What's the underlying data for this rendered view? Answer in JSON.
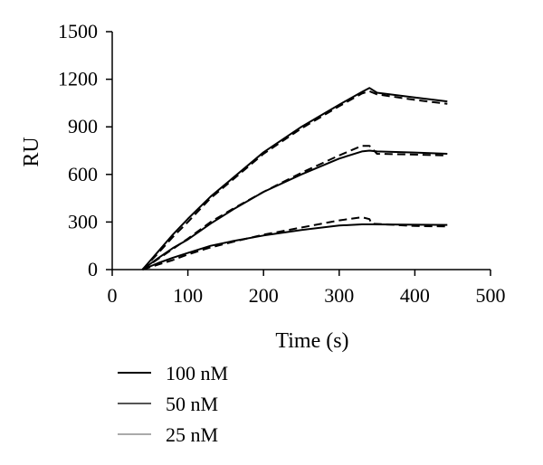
{
  "chart_data": {
    "type": "line",
    "xlabel": "Time (s)",
    "ylabel": "RU",
    "xlim": [
      0,
      500
    ],
    "ylim": [
      0,
      1500
    ],
    "x_ticks": [
      0,
      100,
      200,
      300,
      400,
      500
    ],
    "y_ticks": [
      0,
      300,
      600,
      900,
      1200,
      1500
    ],
    "x_tick_labels": [
      "0",
      "100",
      "200",
      "300",
      "400",
      "500"
    ],
    "y_tick_labels": [
      "0",
      "300",
      "600",
      "900",
      "1200",
      "1500"
    ],
    "grid": false,
    "legend_position": "bottom",
    "legend": [
      {
        "label": "100 nM",
        "color": "#000000"
      },
      {
        "label": "50 nM",
        "color": "#555555"
      },
      {
        "label": "25 nM",
        "color": "#aaaaaa"
      }
    ],
    "series": [
      {
        "concentration": "100 nM",
        "style": "solid",
        "color": "#000000",
        "points": [
          [
            40,
            0
          ],
          [
            60,
            110
          ],
          [
            80,
            220
          ],
          [
            100,
            320
          ],
          [
            130,
            460
          ],
          [
            160,
            580
          ],
          [
            200,
            740
          ],
          [
            250,
            900
          ],
          [
            300,
            1040
          ],
          [
            330,
            1120
          ],
          [
            340,
            1145
          ],
          [
            350,
            1115
          ],
          [
            400,
            1085
          ],
          [
            443,
            1060
          ]
        ]
      },
      {
        "concentration": "100 nM",
        "style": "dashed",
        "color": "#000000",
        "points": [
          [
            40,
            0
          ],
          [
            60,
            100
          ],
          [
            80,
            205
          ],
          [
            100,
            300
          ],
          [
            130,
            450
          ],
          [
            160,
            570
          ],
          [
            200,
            730
          ],
          [
            250,
            890
          ],
          [
            300,
            1030
          ],
          [
            330,
            1110
          ],
          [
            340,
            1125
          ],
          [
            350,
            1105
          ],
          [
            400,
            1070
          ],
          [
            443,
            1045
          ]
        ]
      },
      {
        "concentration": "50 nM",
        "style": "solid",
        "color": "#000000",
        "points": [
          [
            40,
            0
          ],
          [
            60,
            70
          ],
          [
            80,
            135
          ],
          [
            100,
            190
          ],
          [
            130,
            290
          ],
          [
            160,
            380
          ],
          [
            200,
            490
          ],
          [
            250,
            600
          ],
          [
            300,
            700
          ],
          [
            330,
            745
          ],
          [
            340,
            750
          ],
          [
            350,
            745
          ],
          [
            400,
            738
          ],
          [
            443,
            730
          ]
        ]
      },
      {
        "concentration": "50 nM",
        "style": "dashed",
        "color": "#000000",
        "points": [
          [
            40,
            0
          ],
          [
            60,
            65
          ],
          [
            80,
            130
          ],
          [
            100,
            195
          ],
          [
            130,
            300
          ],
          [
            160,
            385
          ],
          [
            200,
            490
          ],
          [
            250,
            610
          ],
          [
            300,
            720
          ],
          [
            330,
            780
          ],
          [
            340,
            780
          ],
          [
            350,
            730
          ],
          [
            400,
            725
          ],
          [
            443,
            720
          ]
        ]
      },
      {
        "concentration": "25 nM",
        "style": "solid",
        "color": "#000000",
        "points": [
          [
            40,
            0
          ],
          [
            60,
            40
          ],
          [
            80,
            75
          ],
          [
            100,
            105
          ],
          [
            130,
            150
          ],
          [
            160,
            180
          ],
          [
            200,
            215
          ],
          [
            250,
            250
          ],
          [
            300,
            278
          ],
          [
            330,
            285
          ],
          [
            343,
            285
          ],
          [
            400,
            283
          ],
          [
            443,
            282
          ]
        ]
      },
      {
        "concentration": "25 nM",
        "style": "dashed",
        "color": "#000000",
        "points": [
          [
            40,
            0
          ],
          [
            60,
            30
          ],
          [
            80,
            60
          ],
          [
            100,
            95
          ],
          [
            130,
            140
          ],
          [
            160,
            175
          ],
          [
            200,
            220
          ],
          [
            250,
            265
          ],
          [
            300,
            310
          ],
          [
            330,
            330
          ],
          [
            340,
            318
          ],
          [
            343,
            290
          ],
          [
            400,
            275
          ],
          [
            443,
            272
          ]
        ]
      }
    ]
  }
}
